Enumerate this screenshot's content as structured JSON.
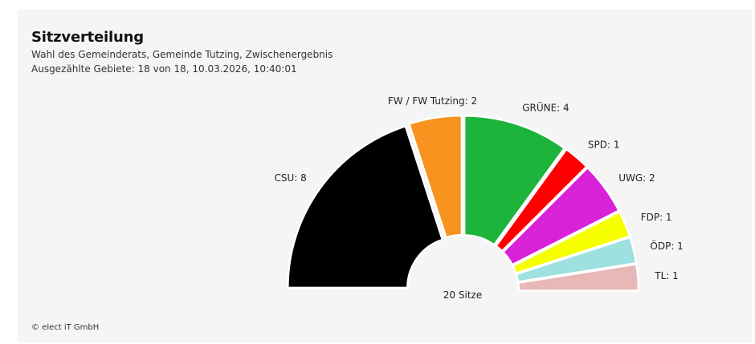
{
  "header": {
    "title": "Sitzverteilung",
    "subtitle": "Wahl des Gemeinderats, Gemeinde Tutzing, Zwischenergebnis",
    "counted": "Ausgezählte Gebiete: 18 von 18, 10.03.2026, 10:40:01"
  },
  "footer": {
    "copyright": "© elect iT GmbH"
  },
  "chart_data": {
    "type": "pie",
    "variant": "semicircle",
    "total_label": "20 Sitze",
    "total": 20,
    "series": [
      {
        "name": "CSU",
        "value": 8,
        "label": "CSU: 8",
        "color": "#000000"
      },
      {
        "name": "FW / FW Tutzing",
        "value": 2,
        "label": "FW / FW Tutzing: 2",
        "color": "#f7931e"
      },
      {
        "name": "GRÜNE",
        "value": 4,
        "label": "GRÜNE: 4",
        "color": "#1db43c"
      },
      {
        "name": "SPD",
        "value": 1,
        "label": "SPD: 1",
        "color": "#ff0000"
      },
      {
        "name": "UWG",
        "value": 2,
        "label": "UWG: 2",
        "color": "#d822d8"
      },
      {
        "name": "FDP",
        "value": 1,
        "label": "FDP: 1",
        "color": "#f5ff00"
      },
      {
        "name": "ÖDP",
        "value": 1,
        "label": "ÖDP: 1",
        "color": "#9fe0e0"
      },
      {
        "name": "TL",
        "value": 1,
        "label": "TL: 1",
        "color": "#e8b8b8"
      }
    ]
  }
}
